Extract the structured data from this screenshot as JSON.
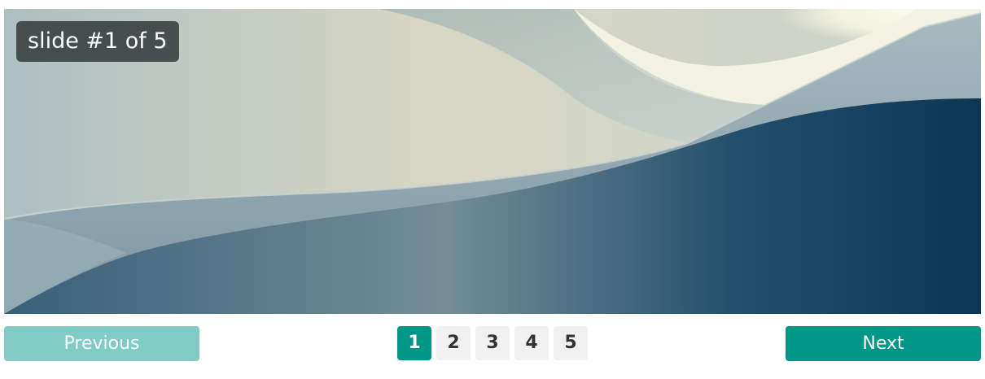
{
  "slider": {
    "caption": "slide #1 of 5",
    "image_icon": "abstract-architecture-photo"
  },
  "controls": {
    "previous_label": "Previous",
    "next_label": "Next"
  },
  "pagination": {
    "pages": [
      "1",
      "2",
      "3",
      "4",
      "5"
    ],
    "active": "1"
  },
  "colors": {
    "accent": "#009688",
    "accent_light": "#80cbc4",
    "page_bg": "#f1f1f1",
    "page_text": "#333333",
    "caption_bg": "#3a3e3e"
  }
}
